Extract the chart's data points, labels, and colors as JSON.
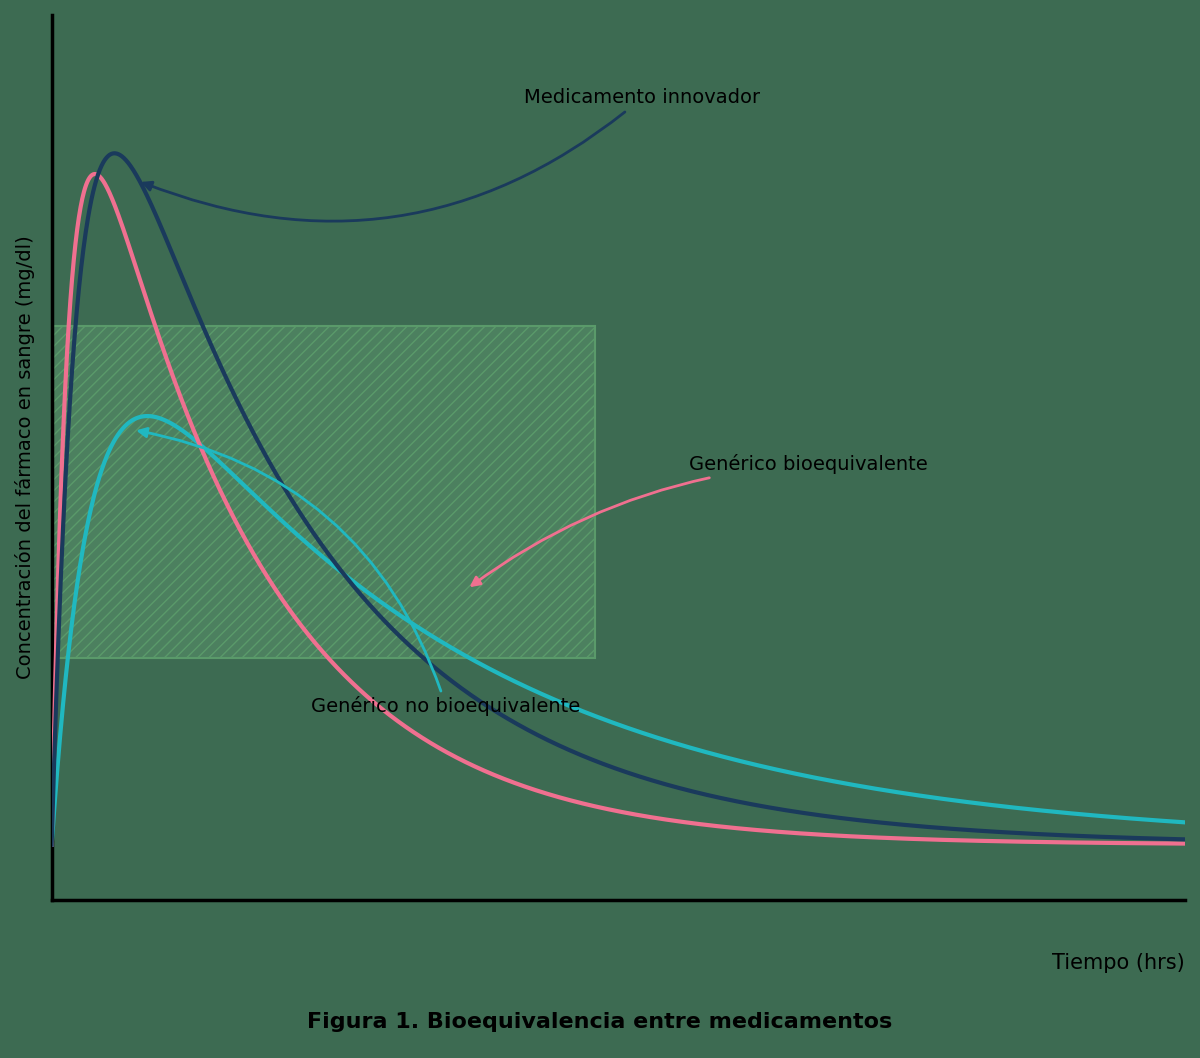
{
  "background_color": "#3d6b52",
  "plot_bg_color": "#3d6b52",
  "ylabel": "Concentración del fármaco en sangre (mg/dl)",
  "xlabel": "Tiempo (hrs)",
  "caption": "Figura 1. Bioequivalencia entre medicamentos",
  "hatch_color": "#5a9a6a",
  "innovador_color": "#1a3a5c",
  "bioequiv_color": "#f07090",
  "no_bioequiv_color": "#20b8c0",
  "line_width": 3.0,
  "annotation_fontsize": 14,
  "innovador_label": "Medicamento innovador",
  "bioequiv_label": "Genérico bioequivalente",
  "no_bioequiv_label": "Genérico no bioequivalente"
}
